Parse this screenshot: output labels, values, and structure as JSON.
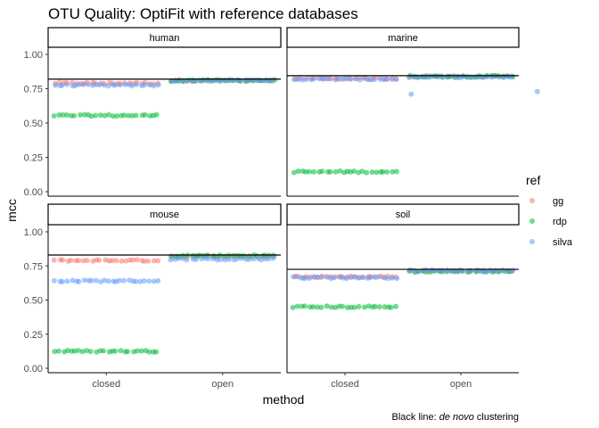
{
  "chart_data": {
    "type": "scatter",
    "title": "OTU Quality: OptiFit with reference databases",
    "xlabel": "method",
    "ylabel": "mcc",
    "caption_prefix": "Black line: ",
    "caption_italic": "de novo",
    "caption_suffix": " clustering",
    "categories": [
      "closed",
      "open"
    ],
    "ylim": [
      0,
      1
    ],
    "yticks": [
      "0.00",
      "0.25",
      "0.50",
      "0.75",
      "1.00"
    ],
    "grid": false,
    "legend": {
      "title": "ref",
      "position": "right",
      "entries": [
        {
          "label": "gg",
          "color": "#F8766D"
        },
        {
          "label": "rdp",
          "color": "#00BA38"
        },
        {
          "label": "silva",
          "color": "#619CFF"
        }
      ]
    },
    "facets": [
      {
        "name": "human",
        "denovo_mcc": 0.82,
        "series": [
          {
            "ref": "gg",
            "closed": 0.79,
            "open": 0.81,
            "outliers": []
          },
          {
            "ref": "rdp",
            "closed": 0.555,
            "open": 0.81,
            "outliers": []
          },
          {
            "ref": "silva",
            "closed": 0.775,
            "open": 0.81,
            "outliers": []
          }
        ]
      },
      {
        "name": "marine",
        "denovo_mcc": 0.845,
        "series": [
          {
            "ref": "gg",
            "closed": 0.825,
            "open": 0.84,
            "outliers": []
          },
          {
            "ref": "rdp",
            "closed": 0.145,
            "open": 0.84,
            "outliers": []
          },
          {
            "ref": "silva",
            "closed": 0.82,
            "open": 0.835,
            "outliers": [
              [
                "closed",
                0.71
              ],
              [
                "open",
                0.73
              ]
            ]
          }
        ]
      },
      {
        "name": "mouse",
        "denovo_mcc": 0.83,
        "series": [
          {
            "ref": "gg",
            "closed": 0.79,
            "open": 0.82,
            "outliers": []
          },
          {
            "ref": "rdp",
            "closed": 0.125,
            "open": 0.825,
            "outliers": []
          },
          {
            "ref": "silva",
            "closed": 0.64,
            "open": 0.8,
            "outliers": []
          }
        ]
      },
      {
        "name": "soil",
        "denovo_mcc": 0.725,
        "series": [
          {
            "ref": "gg",
            "closed": 0.67,
            "open": 0.715,
            "outliers": []
          },
          {
            "ref": "rdp",
            "closed": 0.45,
            "open": 0.71,
            "outliers": []
          },
          {
            "ref": "silva",
            "closed": 0.665,
            "open": 0.715,
            "outliers": []
          }
        ]
      }
    ]
  }
}
